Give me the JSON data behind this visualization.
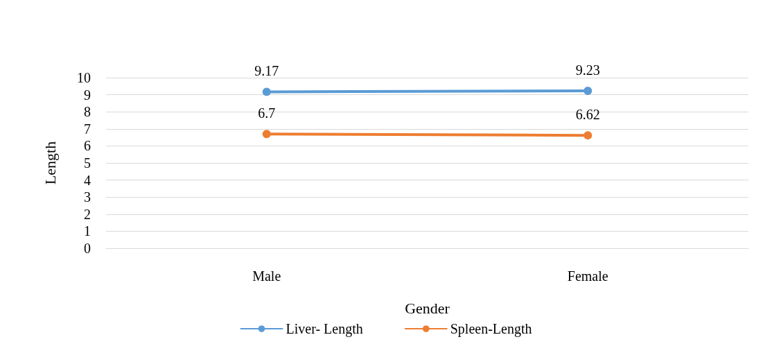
{
  "chart_data": {
    "type": "line",
    "xlabel": "Gender",
    "ylabel": "Length",
    "categories": [
      "Male",
      "Female"
    ],
    "series": [
      {
        "name": "Liver- Length",
        "color": "#5b9bd5",
        "values": [
          9.17,
          9.23
        ]
      },
      {
        "name": "Spleen-Length",
        "color": "#ed7d31",
        "values": [
          6.7,
          6.62
        ]
      }
    ],
    "ylim": [
      0,
      10
    ],
    "yticks": [
      0,
      1,
      2,
      3,
      4,
      5,
      6,
      7,
      8,
      9,
      10
    ],
    "grid": "y",
    "legend": "bottom",
    "marker": "circle",
    "line_style": "solid",
    "data_labels": true
  }
}
